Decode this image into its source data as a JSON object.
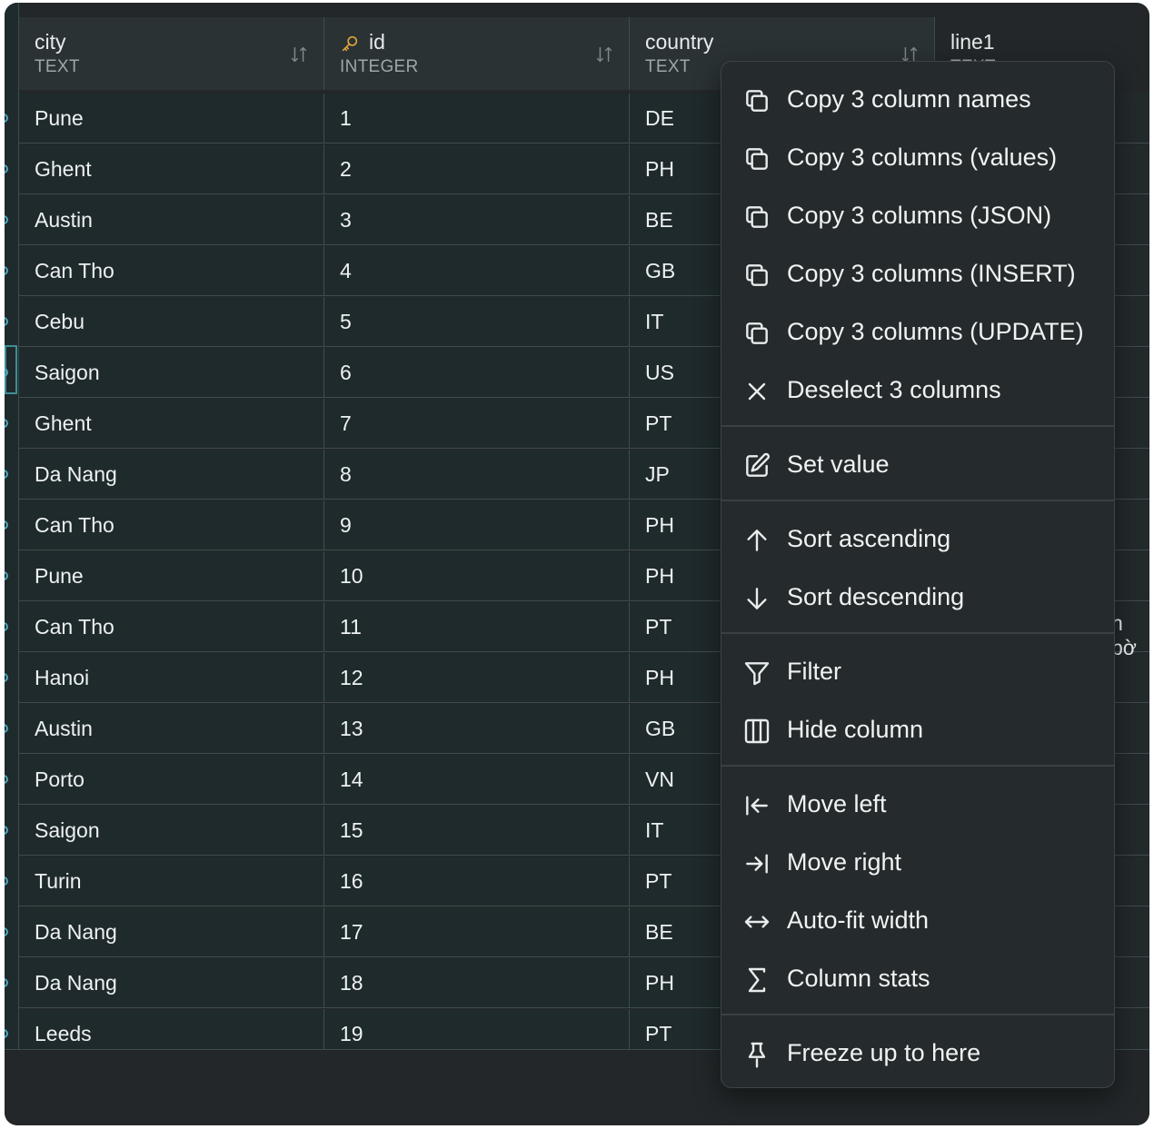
{
  "columns": [
    {
      "name": "city",
      "type": "TEXT"
    },
    {
      "name": "id",
      "type": "INTEGER"
    },
    {
      "name": "country",
      "type": "TEXT"
    },
    {
      "name": "line1",
      "type": "TEXT"
    }
  ],
  "rows": [
    {
      "city": "Pune",
      "id": "1",
      "country": "DE"
    },
    {
      "city": "Ghent",
      "id": "2",
      "country": "PH"
    },
    {
      "city": "Austin",
      "id": "3",
      "country": "BE"
    },
    {
      "city": "Can Tho",
      "id": "4",
      "country": "GB"
    },
    {
      "city": "Cebu",
      "id": "5",
      "country": "IT"
    },
    {
      "city": "Saigon",
      "id": "6",
      "country": "US"
    },
    {
      "city": "Ghent",
      "id": "7",
      "country": "PT"
    },
    {
      "city": "Da Nang",
      "id": "8",
      "country": "JP"
    },
    {
      "city": "Can Tho",
      "id": "9",
      "country": "PH"
    },
    {
      "city": "Pune",
      "id": "10",
      "country": "PH"
    },
    {
      "city": "Can Tho",
      "id": "11",
      "country": "PT"
    },
    {
      "city": "Hanoi",
      "id": "12",
      "country": "PH"
    },
    {
      "city": "Austin",
      "id": "13",
      "country": "GB"
    },
    {
      "city": "Porto",
      "id": "14",
      "country": "VN"
    },
    {
      "city": "Saigon",
      "id": "15",
      "country": "IT"
    },
    {
      "city": "Turin",
      "id": "16",
      "country": "PT"
    },
    {
      "city": "Da Nang",
      "id": "17",
      "country": "BE"
    },
    {
      "city": "Da Nang",
      "id": "18",
      "country": "PH"
    },
    {
      "city": "Leeds",
      "id": "19",
      "country": "PT"
    }
  ],
  "line1_peek_text": "n bờ",
  "context_menu": {
    "items": [
      {
        "label": "Copy 3 column names",
        "icon": "copy-icon"
      },
      {
        "label": "Copy 3 columns (values)",
        "icon": "copy-icon"
      },
      {
        "label": "Copy 3 columns (JSON)",
        "icon": "copy-icon"
      },
      {
        "label": "Copy 3 columns (INSERT)",
        "icon": "copy-icon"
      },
      {
        "label": "Copy 3 columns (UPDATE)",
        "icon": "copy-icon"
      },
      {
        "label": "Deselect 3 columns",
        "icon": "close-icon"
      },
      {
        "label": "Set value",
        "icon": "edit-icon"
      },
      {
        "label": "Sort ascending",
        "icon": "arrow-up-icon"
      },
      {
        "label": "Sort descending",
        "icon": "arrow-down-icon"
      },
      {
        "label": "Filter",
        "icon": "filter-icon"
      },
      {
        "label": "Hide column",
        "icon": "columns-icon"
      },
      {
        "label": "Move left",
        "icon": "move-left-icon"
      },
      {
        "label": "Move right",
        "icon": "move-right-icon"
      },
      {
        "label": "Auto-fit width",
        "icon": "auto-fit-icon"
      },
      {
        "label": "Column stats",
        "icon": "sigma-icon"
      },
      {
        "label": "Freeze up to here",
        "icon": "pin-icon"
      }
    ]
  },
  "colors": {
    "window_bg": "#232729",
    "cell_bg": "#1f2a2c",
    "header_bg": "#2a3234",
    "grid_line": "#3f4c4e",
    "menu_bg": "#252a2c",
    "key_accent": "#e0a33a",
    "selection_accent": "#4aa8bd"
  }
}
